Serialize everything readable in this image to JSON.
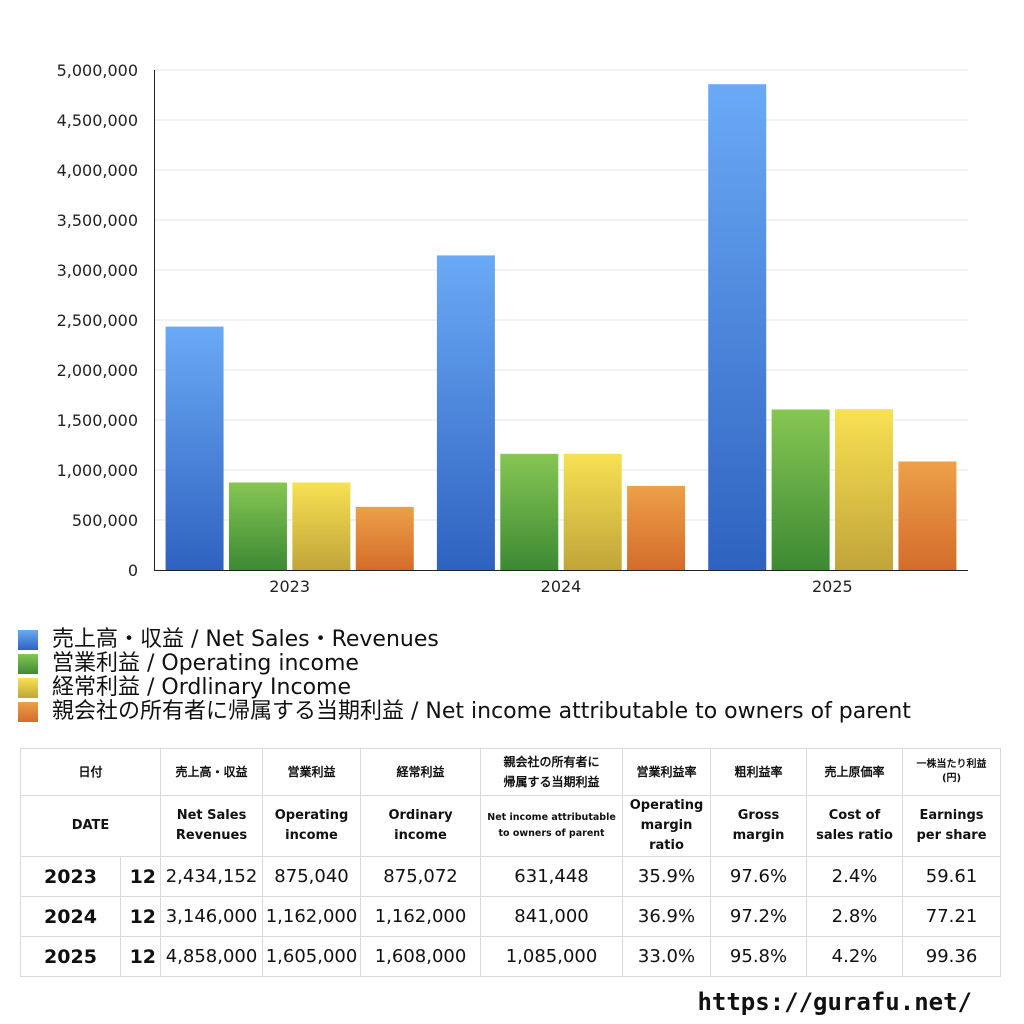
{
  "chart_data": {
    "type": "bar",
    "categories": [
      "2023",
      "2024",
      "2025"
    ],
    "series": [
      {
        "name": "売上高・収益 / Net Sales・Revenues",
        "values": [
          2434152,
          3146000,
          4858000
        ],
        "color_top": "#6aaaf5",
        "color_bottom": "#2f62c0"
      },
      {
        "name": "営業利益 / Operating income",
        "values": [
          875040,
          1162000,
          1605000
        ],
        "color_top": "#86c653",
        "color_bottom": "#3d8a33"
      },
      {
        "name": "経常利益 / Ordlinary Income",
        "values": [
          875072,
          1162000,
          1608000
        ],
        "color_top": "#f7e152",
        "color_bottom": "#c0a53a"
      },
      {
        "name": "親会社の所有者に帰属する当期利益 / Net income attributable to owners of parent",
        "values": [
          631448,
          841000,
          1085000
        ],
        "color_top": "#eda048",
        "color_bottom": "#d36c2b"
      }
    ],
    "ylim": [
      0,
      5000000
    ],
    "yticks": [
      "0",
      "500,000",
      "1,000,000",
      "1,500,000",
      "2,000,000",
      "2,500,000",
      "3,000,000",
      "3,500,000",
      "4,000,000",
      "4,500,000",
      "5,000,000"
    ],
    "grid": true,
    "legend": "bottom"
  },
  "table": {
    "header_ja": {
      "date": "日付",
      "sales": "売上高・収益",
      "operating": "営業利益",
      "ordinary": "経常利益",
      "net_line1": "親会社の所有者に",
      "net_line2": "帰属する当期利益",
      "op_margin": "営業利益率",
      "gross": "粗利益率",
      "cost": "売上原価率",
      "eps_line1": "一株当たり利益",
      "eps_line2": "(円)"
    },
    "header_en": {
      "date": "DATE",
      "sales_line1": "Net Sales",
      "sales_line2": "Revenues",
      "operating_line1": "Operating",
      "operating_line2": "income",
      "ordinary_line1": "Ordinary",
      "ordinary_line2": "income",
      "net_line1": "Net income attributable",
      "net_line2": "to owners of parent",
      "op_margin_line1": "Operating",
      "op_margin_line2": "margin",
      "op_margin_line3": "ratio",
      "gross_line1": "Gross",
      "gross_line2": "margin",
      "cost_line1": "Cost of",
      "cost_line2": "sales ratio",
      "eps_line1": "Earnings",
      "eps_line2": "per share"
    },
    "rows": [
      {
        "year": "2023",
        "month": "12",
        "sales": "2,434,152",
        "operating": "875,040",
        "ordinary": "875,072",
        "net": "631,448",
        "op_margin": "35.9%",
        "gross": "97.6%",
        "cost": "2.4%",
        "eps": "59.61"
      },
      {
        "year": "2024",
        "month": "12",
        "sales": "3,146,000",
        "operating": "1,162,000",
        "ordinary": "1,162,000",
        "net": "841,000",
        "op_margin": "36.9%",
        "gross": "97.2%",
        "cost": "2.8%",
        "eps": "77.21"
      },
      {
        "year": "2025",
        "month": "12",
        "sales": "4,858,000",
        "operating": "1,605,000",
        "ordinary": "1,608,000",
        "net": "1,085,000",
        "op_margin": "33.0%",
        "gross": "95.8%",
        "cost": "4.2%",
        "eps": "99.36"
      }
    ]
  },
  "footer": {
    "url": "https://gurafu.net/"
  }
}
